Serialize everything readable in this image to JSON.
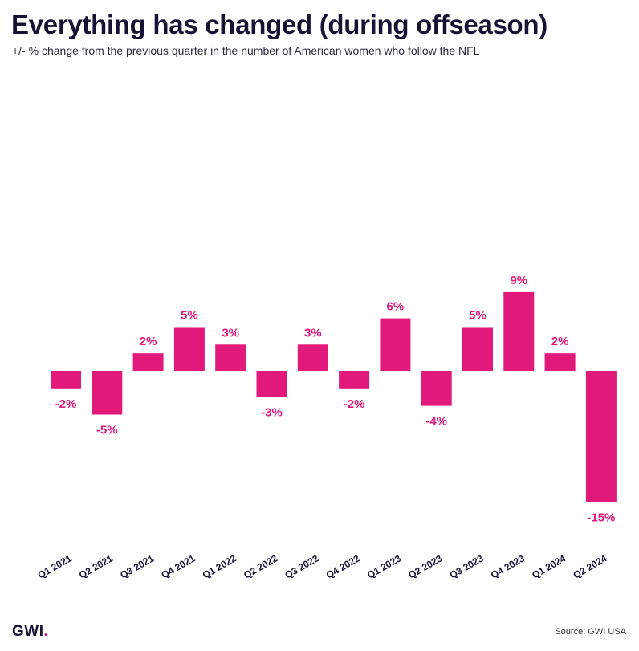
{
  "header": {
    "title": "Everything has changed (during offseason)",
    "subtitle": "+/- % change from the previous quarter in the number of American women who follow the NFL"
  },
  "colors": {
    "bar": "#e0197a",
    "label": "#e0197a",
    "title": "#151233",
    "axis_text": "#151233"
  },
  "chart_data": {
    "type": "bar",
    "title": "Everything has changed (during offseason)",
    "subtitle": "+/- % change from the previous quarter in the number of American women who follow the NFL",
    "categories": [
      "Q1 2021",
      "Q2 2021",
      "Q3 2021",
      "Q4 2021",
      "Q1 2022",
      "Q2 2022",
      "Q3 2022",
      "Q4 2022",
      "Q1 2023",
      "Q2 2023",
      "Q3 2023",
      "Q4 2023",
      "Q1 2024",
      "Q2 2024"
    ],
    "values": [
      -2,
      -5,
      2,
      5,
      3,
      -3,
      3,
      -2,
      6,
      -4,
      5,
      9,
      2,
      -15
    ],
    "data_labels": [
      "-2%",
      "-5%",
      "2%",
      "5%",
      "3%",
      "-3%",
      "3%",
      "-2%",
      "6%",
      "-4%",
      "5%",
      "9%",
      "2%",
      "-15%"
    ],
    "xlabel": "",
    "ylabel": "",
    "ylim": [
      -15,
      9
    ],
    "grid": false
  },
  "footer": {
    "logo_text": "GWI",
    "logo_dot": ".",
    "source": "Source: GWI USA"
  }
}
